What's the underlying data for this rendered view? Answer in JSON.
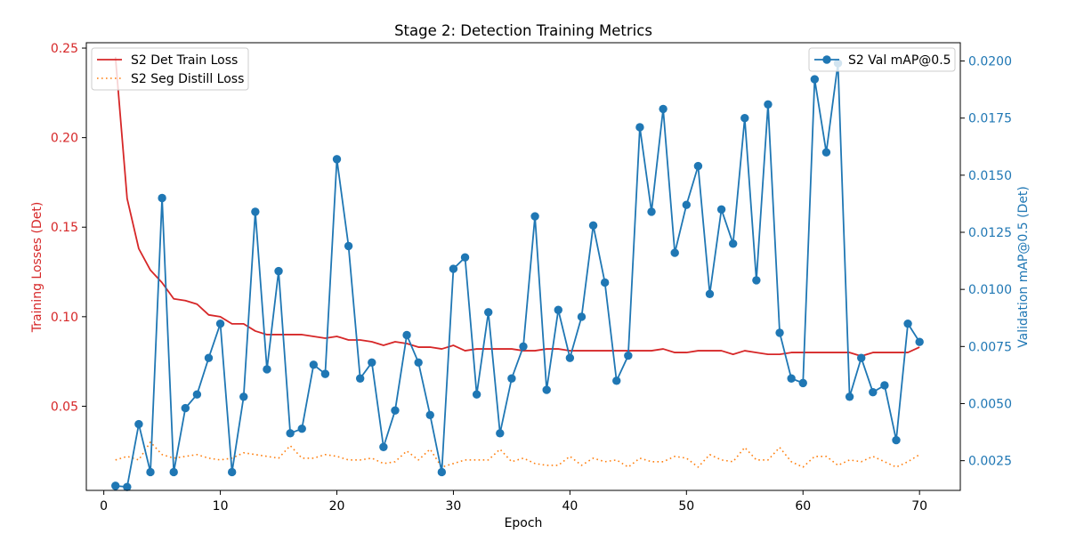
{
  "chart_data": {
    "type": "line",
    "title": "Stage 2: Detection Training Metrics",
    "xlabel": "Epoch",
    "ylabel_left": "Training Losses (Det)",
    "ylabel_right": "Validation mAP@0.5 (Det)",
    "xlim": [
      -1.5,
      73.5
    ],
    "ylim_left": [
      0.003,
      0.253
    ],
    "ylim_right": [
      0.0012,
      0.0208
    ],
    "xticks": [
      0,
      10,
      20,
      30,
      40,
      50,
      60,
      70
    ],
    "yticks_left": [
      "0.05",
      "0.10",
      "0.15",
      "0.20",
      "0.25"
    ],
    "yticks_right": [
      "0.0025",
      "0.0050",
      "0.0075",
      "0.0100",
      "0.0125",
      "0.0150",
      "0.0175",
      "0.0200"
    ],
    "grid": false,
    "legend_left": "upper-left",
    "legend_right": "upper-right",
    "colors": {
      "det_train_loss": "#d62728",
      "seg_distill_loss": "#ff7f0e",
      "val_map": "#1f77b4",
      "left_axis_text": "#d62728",
      "right_axis_text": "#1f77b4"
    },
    "series": [
      {
        "name": "S2 Det Train Loss",
        "axis": "left",
        "style": "solid",
        "x": [
          1,
          2,
          3,
          4,
          5,
          6,
          7,
          8,
          9,
          10,
          11,
          12,
          13,
          14,
          15,
          16,
          17,
          18,
          19,
          20,
          21,
          22,
          23,
          24,
          25,
          26,
          27,
          28,
          29,
          30,
          31,
          32,
          33,
          34,
          35,
          36,
          37,
          38,
          39,
          40,
          41,
          42,
          43,
          44,
          45,
          46,
          47,
          48,
          49,
          50,
          51,
          52,
          53,
          54,
          55,
          56,
          57,
          58,
          59,
          60,
          61,
          62,
          63,
          64,
          65,
          66,
          67,
          68,
          69,
          70
        ],
        "values": [
          0.245,
          0.166,
          0.138,
          0.126,
          0.119,
          0.11,
          0.109,
          0.107,
          0.101,
          0.1,
          0.096,
          0.096,
          0.092,
          0.09,
          0.09,
          0.09,
          0.09,
          0.089,
          0.088,
          0.089,
          0.087,
          0.087,
          0.086,
          0.084,
          0.086,
          0.085,
          0.083,
          0.083,
          0.082,
          0.084,
          0.081,
          0.082,
          0.082,
          0.082,
          0.082,
          0.081,
          0.081,
          0.082,
          0.082,
          0.081,
          0.081,
          0.081,
          0.081,
          0.081,
          0.081,
          0.081,
          0.081,
          0.082,
          0.08,
          0.08,
          0.081,
          0.081,
          0.081,
          0.079,
          0.081,
          0.08,
          0.079,
          0.079,
          0.08,
          0.08,
          0.08,
          0.08,
          0.08,
          0.08,
          0.078,
          0.08,
          0.08,
          0.08,
          0.08,
          0.083
        ]
      },
      {
        "name": "S2 Seg Distill Loss",
        "axis": "left",
        "style": "dotted",
        "x": [
          1,
          2,
          3,
          4,
          5,
          6,
          7,
          8,
          9,
          10,
          11,
          12,
          13,
          14,
          15,
          16,
          17,
          18,
          19,
          20,
          21,
          22,
          23,
          24,
          25,
          26,
          27,
          28,
          29,
          30,
          31,
          32,
          33,
          34,
          35,
          36,
          37,
          38,
          39,
          40,
          41,
          42,
          43,
          44,
          45,
          46,
          47,
          48,
          49,
          50,
          51,
          52,
          53,
          54,
          55,
          56,
          57,
          58,
          59,
          60,
          61,
          62,
          63,
          64,
          65,
          66,
          67,
          68,
          69,
          70
        ],
        "values": [
          0.02,
          0.022,
          0.02,
          0.03,
          0.023,
          0.021,
          0.022,
          0.023,
          0.021,
          0.02,
          0.021,
          0.024,
          0.023,
          0.022,
          0.021,
          0.028,
          0.021,
          0.021,
          0.023,
          0.022,
          0.02,
          0.02,
          0.021,
          0.018,
          0.019,
          0.025,
          0.02,
          0.026,
          0.016,
          0.018,
          0.02,
          0.02,
          0.02,
          0.026,
          0.019,
          0.021,
          0.018,
          0.017,
          0.017,
          0.022,
          0.017,
          0.021,
          0.019,
          0.02,
          0.016,
          0.021,
          0.019,
          0.019,
          0.022,
          0.021,
          0.016,
          0.023,
          0.02,
          0.019,
          0.027,
          0.02,
          0.02,
          0.027,
          0.019,
          0.016,
          0.022,
          0.022,
          0.017,
          0.02,
          0.019,
          0.022,
          0.019,
          0.016,
          0.019,
          0.023
        ]
      },
      {
        "name": "S2 Val mAP@0.5",
        "axis": "right",
        "style": "solid-markers",
        "x": [
          1,
          2,
          3,
          4,
          5,
          6,
          7,
          8,
          9,
          10,
          11,
          12,
          13,
          14,
          15,
          16,
          17,
          18,
          19,
          20,
          21,
          22,
          23,
          24,
          25,
          26,
          27,
          28,
          29,
          30,
          31,
          32,
          33,
          34,
          35,
          36,
          37,
          38,
          39,
          40,
          41,
          42,
          43,
          44,
          45,
          46,
          47,
          48,
          49,
          50,
          51,
          52,
          53,
          54,
          55,
          56,
          57,
          58,
          59,
          60,
          61,
          62,
          63,
          64,
          65,
          66,
          67,
          68,
          69,
          70
        ],
        "values": [
          0.0014,
          0.00135,
          0.0041,
          0.002,
          0.014,
          0.002,
          0.0048,
          0.0054,
          0.007,
          0.0085,
          0.002,
          0.0053,
          0.0134,
          0.0065,
          0.0108,
          0.0037,
          0.0039,
          0.0067,
          0.0063,
          0.0157,
          0.0119,
          0.0061,
          0.0068,
          0.0031,
          0.0047,
          0.008,
          0.0068,
          0.0045,
          0.002,
          0.0109,
          0.0114,
          0.0054,
          0.009,
          0.0037,
          0.0061,
          0.0075,
          0.0132,
          0.0056,
          0.0091,
          0.007,
          0.0088,
          0.0128,
          0.0103,
          0.006,
          0.0071,
          0.0171,
          0.0134,
          0.0179,
          0.0116,
          0.0137,
          0.0154,
          0.0098,
          0.0135,
          0.012,
          0.0175,
          0.0104,
          0.0181,
          0.0081,
          0.0061,
          0.0059,
          0.0192,
          0.016,
          0.0199,
          0.0053,
          0.007,
          0.0055,
          0.0058,
          0.0034,
          0.0085,
          0.0077
        ]
      }
    ]
  }
}
